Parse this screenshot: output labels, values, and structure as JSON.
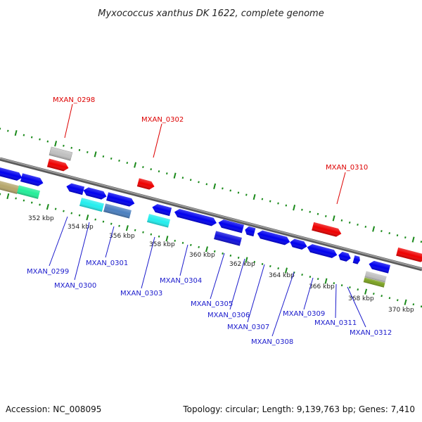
{
  "title": "Myxococcus xanthus DK 1622, complete genome",
  "footer": {
    "accession": "Accession: NC_008095",
    "summary": "Topology: circular; Length: 9,139,763 bp; Genes: 7,410"
  },
  "colors": {
    "backbone": "#808080",
    "tick": "#1a8a1a",
    "label_red": "#dd0000",
    "label_blue": "#1a1acc",
    "gene_blue": "#0000ee",
    "gene_red": "#ee0000",
    "gene_cyan": "#22eeee",
    "gene_gray": "#c0c0c0",
    "gene_khaki": "#b5a66a",
    "gene_aqua": "#22ee99",
    "gene_steel": "#4a7fbf",
    "gene_olive": "#7aa020"
  },
  "scale": {
    "unit": "kbp",
    "ticks": [
      {
        "label": "352 kbp"
      },
      {
        "label": "354 kbp"
      },
      {
        "label": "356 kbp"
      },
      {
        "label": "358 kbp"
      },
      {
        "label": "360 kbp"
      },
      {
        "label": "362 kbp"
      },
      {
        "label": "364 kbp"
      },
      {
        "label": "366 kbp"
      },
      {
        "label": "368 kbp"
      },
      {
        "label": "370 kbp"
      }
    ]
  },
  "gene_labels": {
    "top": [
      "MXAN_0298",
      "MXAN_0302",
      "MXAN_0310"
    ],
    "bottom": [
      "MXAN_0299",
      "MXAN_0300",
      "MXAN_0301",
      "MXAN_0303",
      "MXAN_0304",
      "MXAN_0305",
      "MXAN_0306",
      "MXAN_0307",
      "MXAN_0308",
      "MXAN_0309",
      "MXAN_0311",
      "MXAN_0312"
    ]
  }
}
